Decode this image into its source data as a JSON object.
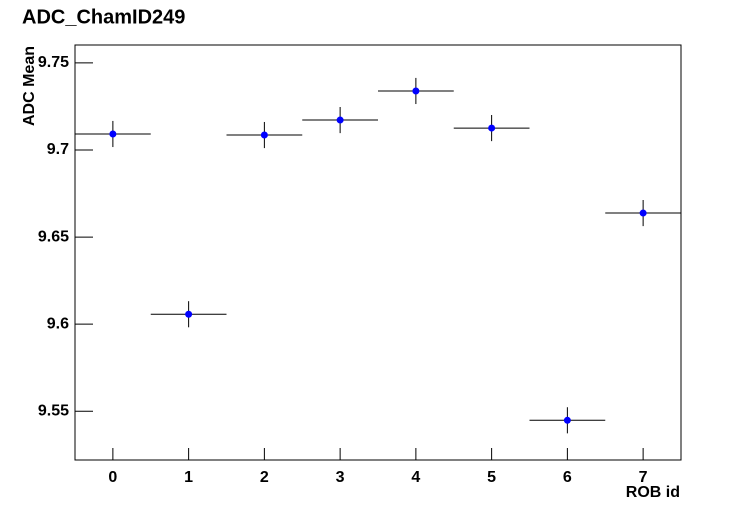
{
  "chart_data": {
    "type": "scatter",
    "title": "ADC_ChamID249",
    "x_label": "ROB id",
    "y_label": "ADC Mean",
    "x": [
      0,
      1,
      2,
      3,
      4,
      5,
      6,
      7
    ],
    "values": [
      9.7092,
      9.6057,
      9.7086,
      9.7172,
      9.7339,
      9.7126,
      9.5448,
      9.6638
    ],
    "yerr": [
      0.0075,
      0.0075,
      0.0075,
      0.0075,
      0.0075,
      0.0075,
      0.0075,
      0.0075
    ],
    "xerr": [
      0.5,
      0.5,
      0.5,
      0.5,
      0.5,
      0.5,
      0.5,
      0.5
    ],
    "color": "#0000ff",
    "xlim": [
      -0.5,
      7.5
    ],
    "xticks": [
      0,
      1,
      2,
      3,
      4,
      5,
      6,
      7
    ],
    "ylim": [
      9.522,
      9.7603
    ],
    "yticks": [
      9.55,
      9.6,
      9.65,
      9.7,
      9.75
    ]
  }
}
